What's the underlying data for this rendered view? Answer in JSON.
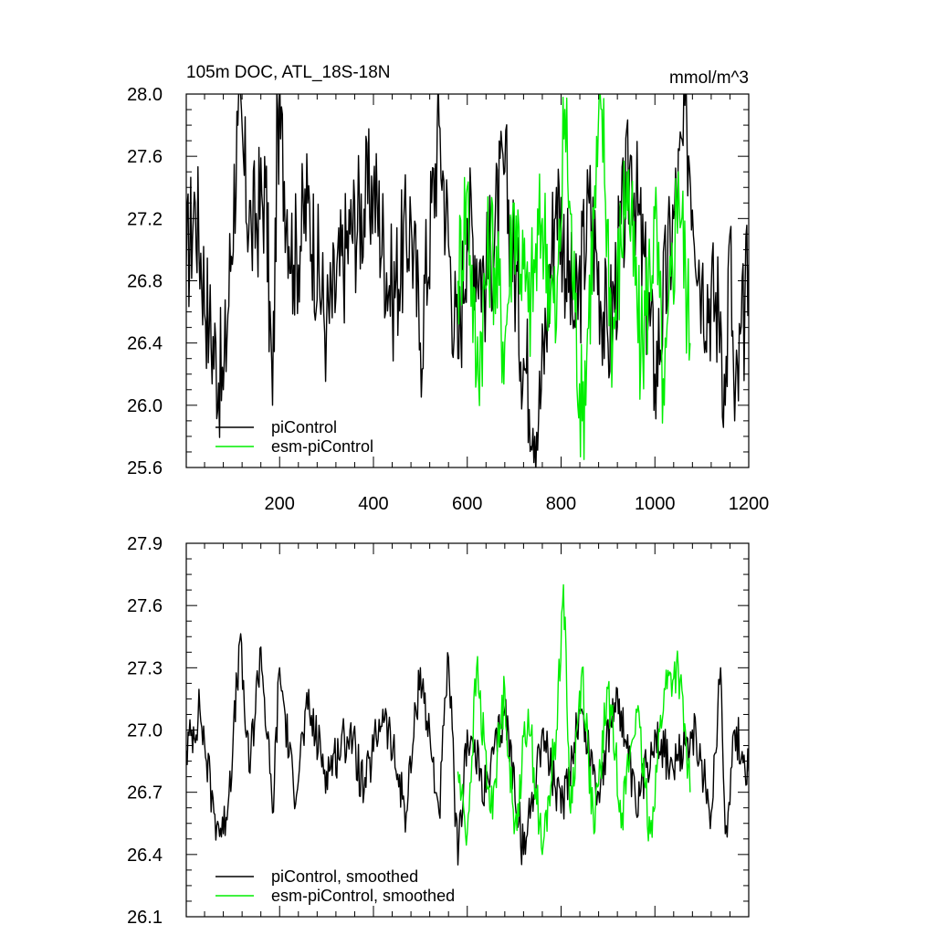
{
  "colors": {
    "piControl": "#000000",
    "esm_piControl": "#00ee00",
    "axis": "#000000",
    "background": "#ffffff"
  },
  "chart_data": [
    {
      "type": "line",
      "title": "105m DOC, ATL_18S-18N",
      "units_label": "mmol/m^3",
      "xlabel": "",
      "ylabel": "",
      "xlim": [
        1,
        1200
      ],
      "ylim": [
        25.6,
        28.0
      ],
      "x_ticks": [
        200,
        400,
        600,
        800,
        1000,
        1200
      ],
      "x_tick_labels": [
        "200",
        "400",
        "600",
        "800",
        "1000",
        "1200"
      ],
      "y_ticks": [
        25.6,
        26.0,
        26.4,
        26.8,
        27.2,
        27.6,
        28.0
      ],
      "y_tick_labels": [
        "25.6",
        "26.0",
        "26.4",
        "26.8",
        "27.2",
        "27.6",
        "28.0"
      ],
      "grid": false,
      "legend_position": "bottom-left",
      "series": [
        {
          "name": "piControl",
          "color": "#000000",
          "x": [
            1,
            20,
            50,
            80,
            111,
            140,
            170,
            185,
            196,
            230,
            260,
            300,
            350,
            400,
            440,
            480,
            500,
            540,
            580,
            600,
            640,
            680,
            720,
            752,
            790,
            830,
            860,
            900,
            950,
            1000,
            1040,
            1068,
            1100,
            1140,
            1150,
            1160,
            1170,
            1200
          ],
          "y": [
            26.9,
            27.3,
            26.5,
            26.1,
            27.8,
            27.1,
            27.4,
            26.0,
            27.9,
            26.9,
            27.3,
            26.5,
            27.1,
            27.4,
            26.7,
            27.2,
            26.4,
            27.8,
            26.3,
            27.2,
            26.8,
            27.5,
            26.3,
            25.9,
            27.4,
            26.5,
            27.3,
            26.4,
            27.6,
            26.2,
            27.2,
            27.8,
            26.8,
            26.6,
            26.0,
            27.1,
            25.9,
            26.9
          ]
        },
        {
          "name": "esm-piControl",
          "color": "#00ee00",
          "x": [
            580,
            600,
            620,
            650,
            680,
            700,
            730,
            760,
            790,
            808,
            830,
            845,
            870,
            887,
            910,
            940,
            970,
            1000,
            1020,
            1050,
            1075
          ],
          "y": [
            26.8,
            27.4,
            26.2,
            27.1,
            26.4,
            27.3,
            26.6,
            27.2,
            26.5,
            27.9,
            26.6,
            25.9,
            27.2,
            27.9,
            26.4,
            27.5,
            26.3,
            27.2,
            26.0,
            27.5,
            26.4
          ]
        }
      ],
      "legend": [
        "piControl",
        "esm-piControl"
      ]
    },
    {
      "type": "line",
      "title": "",
      "xlabel": "",
      "ylabel": "",
      "xlim": [
        1,
        1200
      ],
      "ylim": [
        26.1,
        27.9
      ],
      "x_ticks": [
        200,
        400,
        600,
        800,
        1000,
        1200
      ],
      "y_ticks": [
        26.1,
        26.4,
        26.7,
        27.0,
        27.3,
        27.6,
        27.9
      ],
      "y_tick_labels": [
        "26.1",
        "26.4",
        "26.7",
        "27.0",
        "27.3",
        "27.6",
        "27.9"
      ],
      "grid": false,
      "legend_position": "bottom-left",
      "series": [
        {
          "name": "piControl, smoothed",
          "color": "#000000",
          "x": [
            1,
            30,
            60,
            80,
            100,
            115,
            135,
            160,
            185,
            200,
            230,
            260,
            300,
            350,
            380,
            420,
            470,
            500,
            540,
            560,
            580,
            600,
            640,
            680,
            720,
            760,
            800,
            840,
            880,
            920,
            960,
            1000,
            1040,
            1080,
            1120,
            1140,
            1150,
            1170,
            1200
          ],
          "y": [
            26.9,
            27.1,
            26.6,
            26.5,
            26.9,
            27.43,
            26.8,
            27.4,
            26.6,
            27.3,
            26.7,
            27.1,
            26.8,
            27.0,
            26.7,
            27.1,
            26.6,
            27.3,
            26.6,
            27.35,
            26.35,
            27.0,
            26.7,
            27.1,
            26.4,
            27.0,
            26.6,
            27.1,
            26.7,
            27.2,
            26.6,
            27.0,
            26.8,
            27.0,
            26.6,
            27.3,
            26.5,
            27.0,
            26.8
          ]
        },
        {
          "name": "esm-piControl, smoothed",
          "color": "#00ee00",
          "x": [
            580,
            600,
            620,
            650,
            680,
            700,
            730,
            760,
            790,
            805,
            820,
            845,
            870,
            900,
            930,
            960,
            990,
            1020,
            1050,
            1075
          ],
          "y": [
            26.8,
            26.5,
            27.3,
            26.6,
            27.2,
            26.5,
            27.1,
            26.4,
            27.0,
            27.7,
            26.6,
            27.3,
            26.5,
            27.2,
            26.6,
            27.1,
            26.5,
            27.2,
            27.3,
            26.7
          ]
        }
      ],
      "legend": [
        "piControl, smoothed",
        "esm-piControl, smoothed"
      ]
    }
  ]
}
